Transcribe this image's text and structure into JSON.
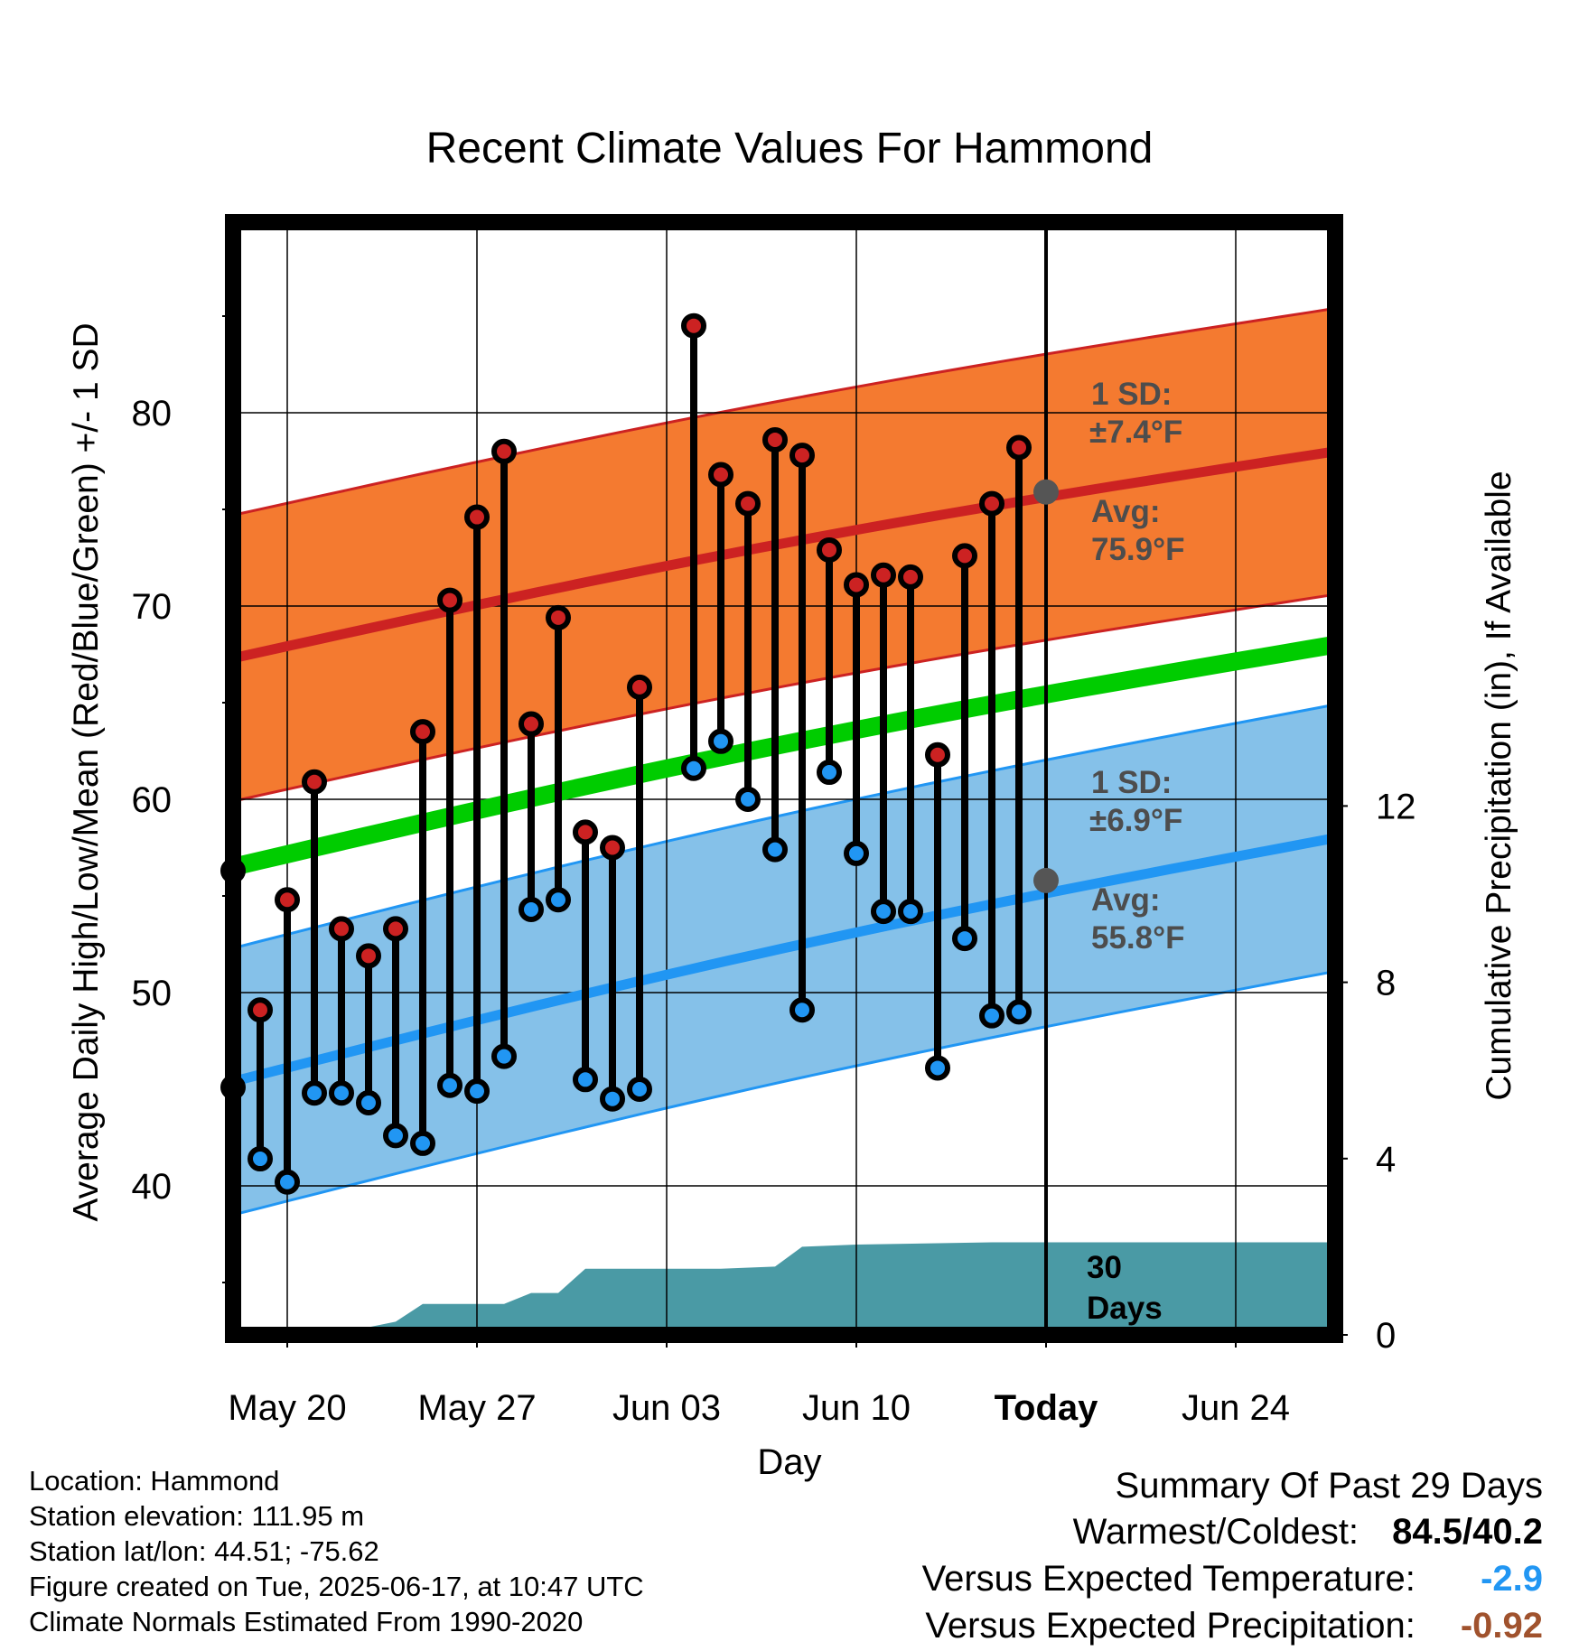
{
  "chart_data": {
    "type": "line",
    "title": "Recent Climate Values For Hammond",
    "xlabel": "Day",
    "ylabel_left": "Average Daily High/Low/Mean (Red/Blue/Green) +/- 1 SD",
    "ylabel_right": "Cumulative Precipitation (in), If Available",
    "x_ticks": [
      "May 20",
      "May 27",
      "Jun 03",
      "Jun 10",
      "Today",
      "Jun 24"
    ],
    "y_ticks_left": [
      "40",
      "50",
      "60",
      "70",
      "80"
    ],
    "y_ticks_right": [
      "0",
      "4",
      "8",
      "12"
    ],
    "ylim_left": [
      34,
      90
    ],
    "ylim_right": [
      0,
      24
    ],
    "grid": true,
    "today_label": "30\nDays",
    "dates": [
      "May 18",
      "May 19",
      "May 20",
      "May 21",
      "May 22",
      "May 23",
      "May 24",
      "May 25",
      "May 26",
      "May 27",
      "May 28",
      "May 29",
      "May 30",
      "May 31",
      "Jun 01",
      "Jun 02",
      "Jun 03",
      "Jun 04",
      "Jun 05",
      "Jun 06",
      "Jun 07",
      "Jun 08",
      "Jun 09",
      "Jun 10",
      "Jun 11",
      "Jun 12",
      "Jun 13",
      "Jun 14",
      "Jun 15",
      "Jun 16"
    ],
    "series": [
      {
        "name": "High",
        "color": "#cc2222",
        "values": [
          56.3,
          49.1,
          54.8,
          60.9,
          53.3,
          51.9,
          53.3,
          63.5,
          70.3,
          74.6,
          78.0,
          63.9,
          69.4,
          58.3,
          57.5,
          65.8,
          null,
          84.5,
          76.8,
          75.3,
          78.6,
          77.8,
          72.9,
          71.1,
          71.6,
          71.5,
          62.3,
          72.6,
          75.3,
          78.2
        ]
      },
      {
        "name": "Low",
        "color": "#2196f3",
        "values": [
          45.1,
          41.4,
          40.2,
          44.8,
          44.8,
          44.3,
          42.6,
          42.2,
          45.2,
          44.9,
          46.7,
          54.3,
          54.8,
          45.5,
          44.5,
          45.0,
          null,
          61.6,
          63.0,
          60.0,
          57.4,
          49.1,
          61.4,
          57.2,
          54.2,
          54.2,
          46.1,
          52.8,
          48.8,
          49.0
        ]
      }
    ],
    "normals": {
      "avg_high": {
        "start": 67.3,
        "end": 78.0,
        "today": 75.9,
        "color": "#cc2222"
      },
      "high_sd": 7.4,
      "avg_low": {
        "start": 45.4,
        "end": 58.0,
        "today": 55.8,
        "color": "#2196f3"
      },
      "low_sd": 6.9,
      "avg_mean": {
        "start": 56.5,
        "end": 68.0,
        "color": "#00cc00"
      },
      "band_colors": {
        "high": "#f47a30",
        "low": "#85c1e9"
      }
    },
    "precip_cumulative": {
      "color": "#4a9aa5",
      "x": [
        "May 18",
        "May 20",
        "May 22",
        "May 24",
        "May 25",
        "May 28",
        "May 29",
        "May 30",
        "May 31",
        "Jun 05",
        "Jun 07",
        "Jun 08",
        "Jun 10",
        "Jun 15",
        "Jun 23"
      ],
      "values": [
        0.0,
        0.0,
        0.05,
        0.3,
        0.7,
        0.7,
        0.95,
        0.95,
        1.5,
        1.5,
        1.55,
        2.0,
        2.05,
        2.1,
        2.1
      ]
    },
    "annotations": {
      "high_sd_label": "1 SD:",
      "high_sd_value": "±7.4°F",
      "high_avg_label": "Avg:",
      "high_avg_value": "75.9°F",
      "low_sd_label": "1 SD:",
      "low_sd_value": "±6.9°F",
      "low_avg_label": "Avg:",
      "low_avg_value": "55.8°F",
      "today_days_1": "30",
      "today_days_2": "Days"
    }
  },
  "info": {
    "location": "Location: Hammond",
    "elevation": "Station elevation: 111.95 m",
    "latlon": "Station lat/lon: 44.51; -75.62",
    "created": "Figure created on Tue, 2025-06-17, at 10:47 UTC",
    "normals": "Climate Normals Estimated From 1990-2020"
  },
  "summary": {
    "title": "Summary Of Past 29 Days",
    "warm_cold_label": "Warmest/Coldest:",
    "warm_cold_value": "84.5/40.2",
    "temp_label": "Versus Expected Temperature:",
    "temp_value": "-2.9",
    "temp_color": "#2196f3",
    "precip_label": "Versus Expected Precipitation:",
    "precip_value": "-0.92",
    "precip_color": "#a0522d"
  }
}
